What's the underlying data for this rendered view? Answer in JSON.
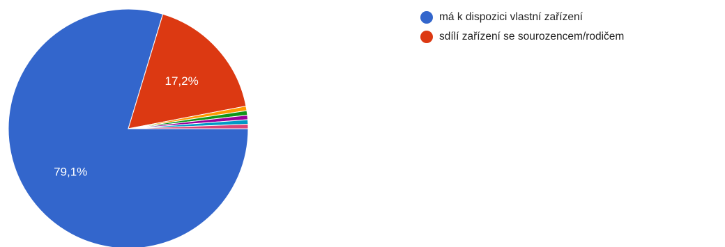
{
  "chart_data": {
    "type": "pie",
    "slices": [
      {
        "label": "má k dispozici vlastní zařízení",
        "value": 79.1,
        "color": "#3366cc",
        "value_label": "79,1%"
      },
      {
        "label": "sdílí zařízení se sourozencem/rodičem",
        "value": 17.2,
        "color": "#dc3912",
        "value_label": "17,2%"
      },
      {
        "label": "",
        "value": 0.6,
        "color": "#ff9900",
        "value_label": ""
      },
      {
        "label": "",
        "value": 0.6,
        "color": "#109618",
        "value_label": ""
      },
      {
        "label": "",
        "value": 0.6,
        "color": "#990099",
        "value_label": ""
      },
      {
        "label": "",
        "value": 0.6,
        "color": "#0099c6",
        "value_label": ""
      },
      {
        "label": "",
        "value": 0.6,
        "color": "#dd4477",
        "value_label": ""
      }
    ],
    "legend_position": "top-right"
  }
}
